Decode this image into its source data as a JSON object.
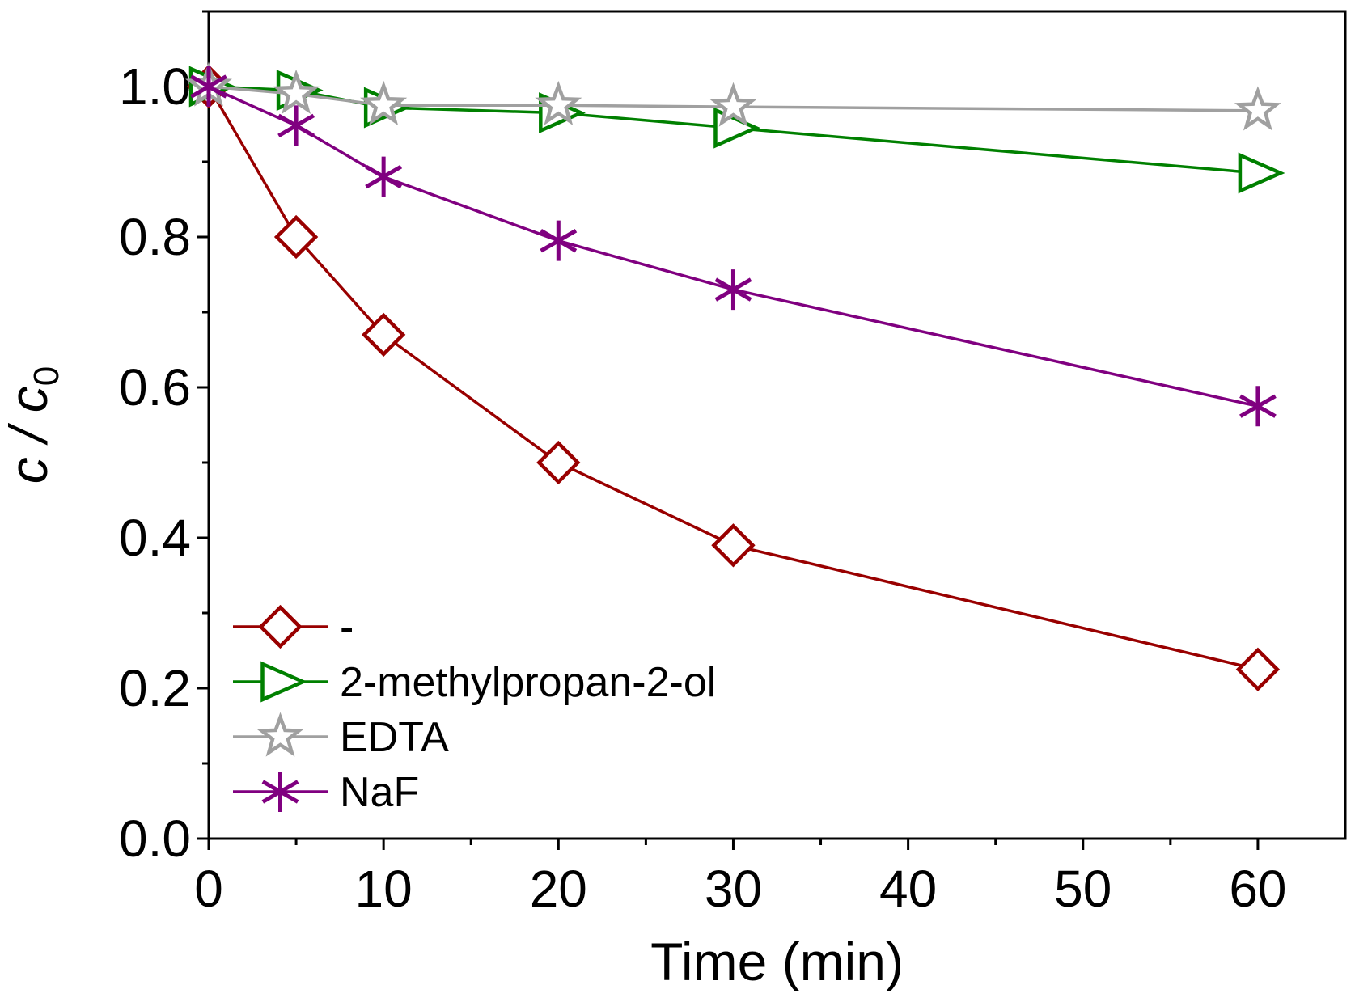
{
  "chart_data": {
    "type": "line",
    "xlabel": "Time (min)",
    "ylabel": {
      "main": "c / c",
      "subscript": "0"
    },
    "xlim": [
      0,
      65
    ],
    "ylim": [
      0,
      1.1
    ],
    "xticks": [
      0,
      10,
      20,
      30,
      40,
      50,
      60
    ],
    "xtick_labels": [
      "0",
      "10",
      "20",
      "30",
      "40",
      "50",
      "60"
    ],
    "yticks": [
      0.0,
      0.2,
      0.4,
      0.6,
      0.8,
      1.0
    ],
    "ytick_labels": [
      "0.0",
      "0.2",
      "0.4",
      "0.6",
      "0.8",
      "1.0"
    ],
    "grid": false,
    "legend_position": "bottom-left",
    "x": [
      0,
      5,
      10,
      20,
      30,
      60
    ],
    "series": [
      {
        "name": "-",
        "color": "#990000",
        "marker": "diamond",
        "values": [
          1.0,
          0.8,
          0.67,
          0.5,
          0.39,
          0.225
        ]
      },
      {
        "name": "2-methylpropan-2-ol",
        "color": "#008000",
        "marker": "triangle-right",
        "values": [
          1.0,
          0.995,
          0.972,
          0.965,
          0.945,
          0.885
        ]
      },
      {
        "name": "EDTA",
        "color": "#a0a0a0",
        "marker": "star",
        "values": [
          1.0,
          0.99,
          0.975,
          0.975,
          0.973,
          0.968
        ]
      },
      {
        "name": "NaF",
        "color": "#800080",
        "marker": "asterisk",
        "values": [
          1.0,
          0.948,
          0.88,
          0.795,
          0.73,
          0.575
        ]
      }
    ]
  }
}
